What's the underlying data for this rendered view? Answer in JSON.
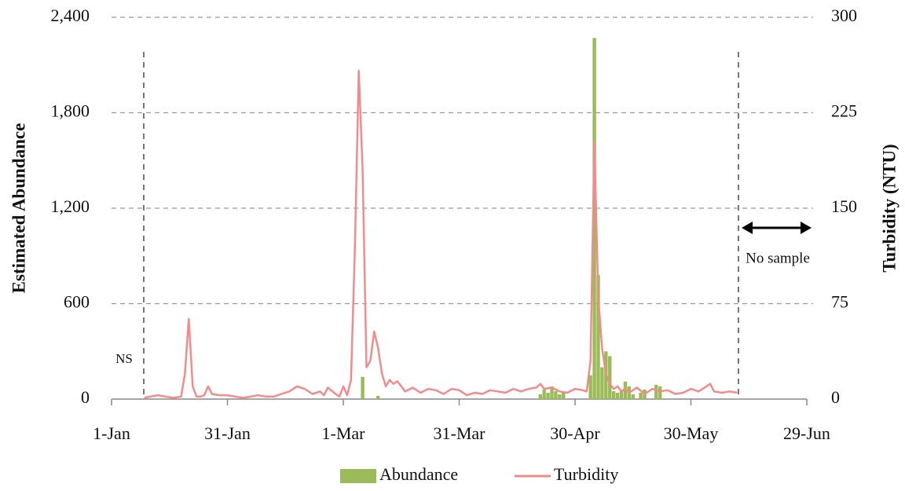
{
  "chart_data": {
    "type": "combo",
    "xlim": [
      0,
      180
    ],
    "xticks": [
      {
        "value": 0,
        "label": "1-Jan"
      },
      {
        "value": 30,
        "label": "31-Jan"
      },
      {
        "value": 60,
        "label": "1-Mar"
      },
      {
        "value": 90,
        "label": "31-Mar"
      },
      {
        "value": 120,
        "label": "30-Apr"
      },
      {
        "value": 150,
        "label": "30-May"
      },
      {
        "value": 180,
        "label": "29-Jun"
      }
    ],
    "ylabel": "Estimated Abundance",
    "ylim": [
      0,
      2400
    ],
    "yticks": [
      0,
      {
        "value": 600,
        "label": "600"
      },
      {
        "value": 1200,
        "label": "1,200"
      },
      {
        "value": 1800,
        "label": "1,800"
      },
      {
        "value": 2400,
        "label": "2,400"
      }
    ],
    "y2label": "Turbidity (NTU)",
    "y2lim": [
      0,
      300
    ],
    "y2ticks": [
      0,
      75,
      150,
      225,
      300
    ],
    "grid": true,
    "legend": "bottom",
    "annotations": [
      "NS",
      "No sample"
    ],
    "series": [
      {
        "name": "Abundance",
        "type": "bar",
        "color": "#9bbb59",
        "x": [
          65,
          69,
          111,
          112,
          113,
          114,
          115,
          116,
          117,
          124,
          125,
          126,
          127,
          128,
          129,
          130,
          131,
          132,
          133,
          134,
          135,
          137,
          138,
          141,
          142
        ],
        "values": [
          140,
          20,
          30,
          60,
          40,
          80,
          50,
          30,
          40,
          150,
          2270,
          780,
          200,
          300,
          270,
          50,
          40,
          60,
          110,
          80,
          30,
          40,
          60,
          90,
          80
        ]
      },
      {
        "name": "Turbidity",
        "type": "line",
        "axis": "y2",
        "color": "#f28b8b",
        "x": [
          8.5,
          10,
          12,
          14,
          16,
          18,
          19,
          20,
          21,
          22,
          23,
          24,
          25,
          26,
          28,
          30,
          32,
          34,
          36,
          38,
          40,
          42,
          44,
          46,
          48,
          50,
          52,
          54,
          55,
          56,
          58,
          59,
          60,
          61,
          62,
          63,
          64,
          65,
          66,
          67,
          68,
          69,
          70,
          71,
          72,
          73,
          74,
          75,
          76,
          78,
          80,
          82,
          84,
          86,
          88,
          90,
          92,
          94,
          96,
          98,
          100,
          102,
          104,
          106,
          108,
          110,
          111,
          112,
          114,
          116,
          118,
          120,
          122,
          123,
          124,
          125,
          126,
          127,
          128,
          129,
          130,
          131,
          132,
          133,
          134,
          136,
          138,
          140,
          142,
          144,
          146,
          148,
          150,
          152,
          154,
          155,
          156,
          158,
          160,
          162
        ],
        "values": [
          1,
          2,
          3,
          2,
          1,
          2,
          20,
          63,
          10,
          2,
          2,
          3,
          10,
          4,
          3,
          3,
          2,
          1,
          2,
          3,
          2,
          2,
          4,
          6,
          10,
          8,
          4,
          6,
          3,
          9,
          4,
          2,
          10,
          3,
          15,
          120,
          258,
          180,
          25,
          30,
          53,
          40,
          20,
          10,
          15,
          12,
          14,
          10,
          6,
          9,
          5,
          8,
          7,
          4,
          8,
          7,
          3,
          5,
          4,
          7,
          6,
          5,
          8,
          6,
          8,
          9,
          12,
          8,
          9,
          6,
          5,
          8,
          7,
          6,
          30,
          202,
          80,
          40,
          20,
          12,
          8,
          10,
          6,
          8,
          5,
          9,
          4,
          8,
          6,
          7,
          4,
          5,
          8,
          6,
          10,
          12,
          6,
          5,
          6,
          5
        ]
      }
    ]
  }
}
